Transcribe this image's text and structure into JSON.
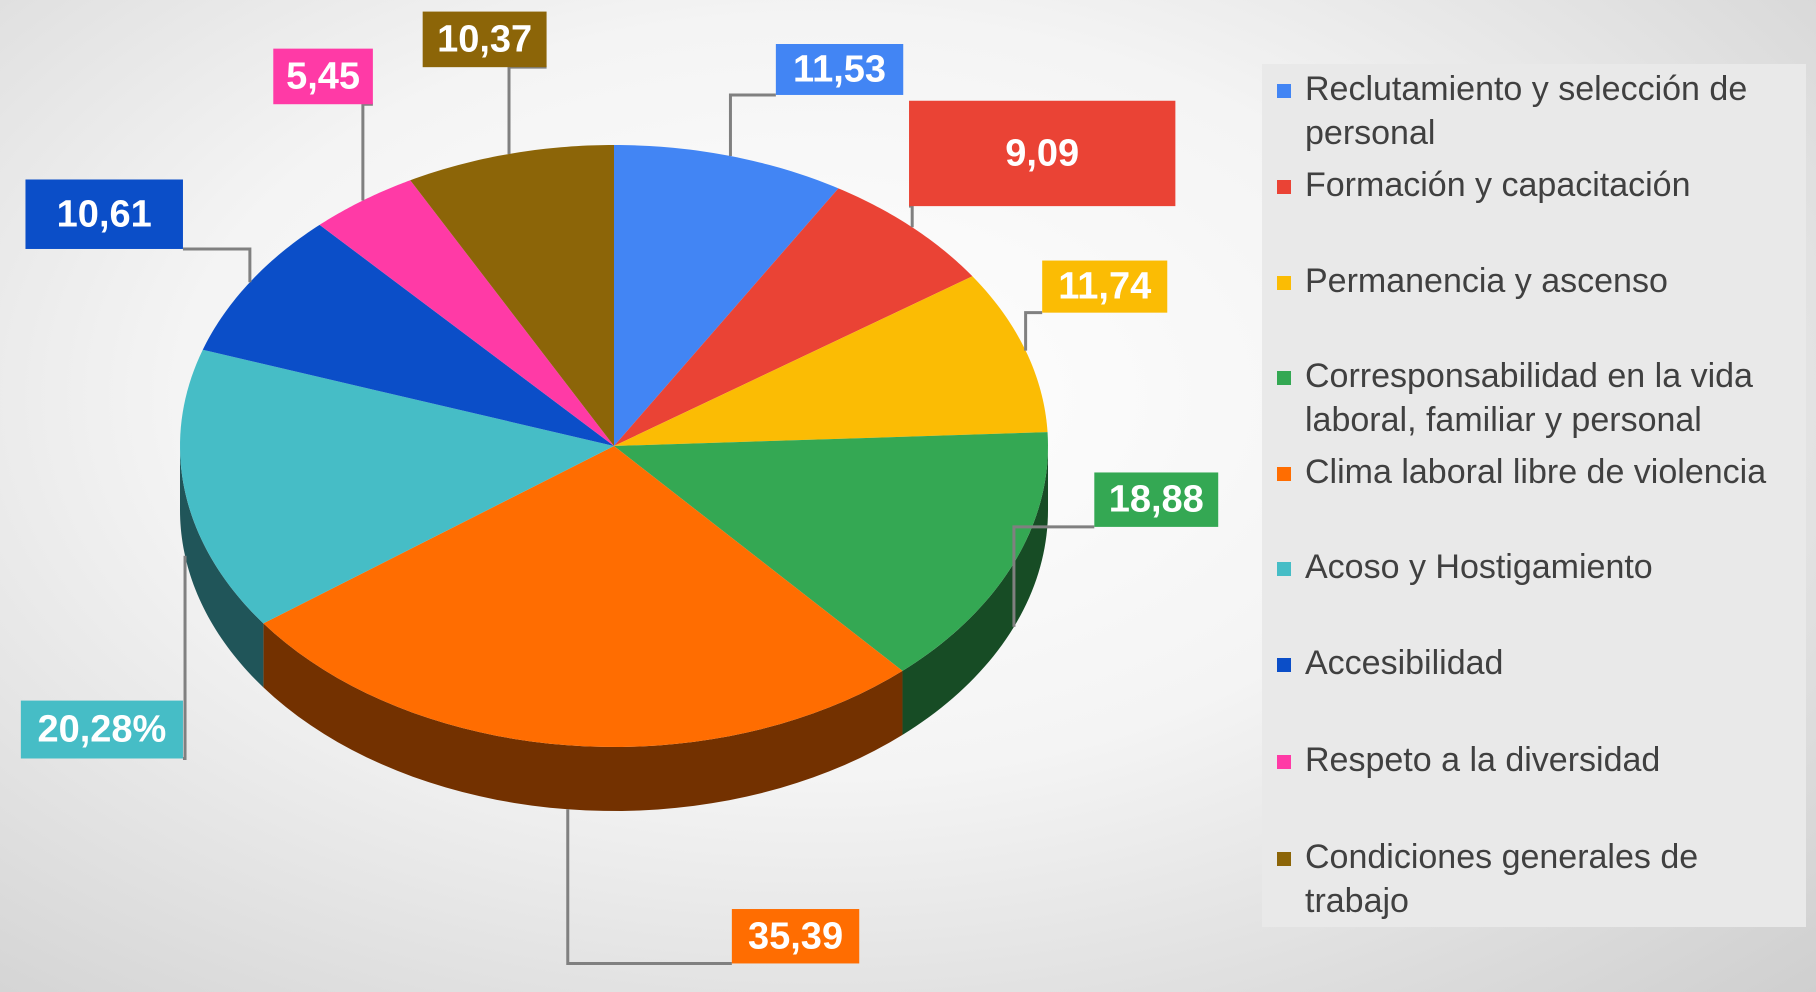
{
  "chart_data": {
    "type": "pie3d",
    "categories": [
      "Reclutamiento y selección de personal",
      "Formación y capacitación",
      "Permanencia y ascenso",
      "Corresponsabilidad en la vida laboral, familiar y personal",
      "Clima laboral libre de violencia",
      "Acoso y Hostigamiento",
      "Accesibilidad",
      "Respeto a la diversidad",
      "Condiciones generales de trabajo"
    ],
    "values": [
      11.53,
      9.09,
      11.74,
      18.88,
      35.39,
      20.28,
      10.61,
      5.45,
      10.37
    ],
    "value_labels": [
      "11,53",
      "9,09",
      "11,74",
      "18,88",
      "35,39",
      "20,28%",
      "10,61",
      "5,45",
      "10,37"
    ],
    "colors": [
      "#4285f4",
      "#ea4335",
      "#fbbc04",
      "#34a853",
      "#ff6d01",
      "#46bdc6",
      "#0b4ec8",
      "#ff3aa6",
      "#8c6508"
    ],
    "legend": "right"
  }
}
